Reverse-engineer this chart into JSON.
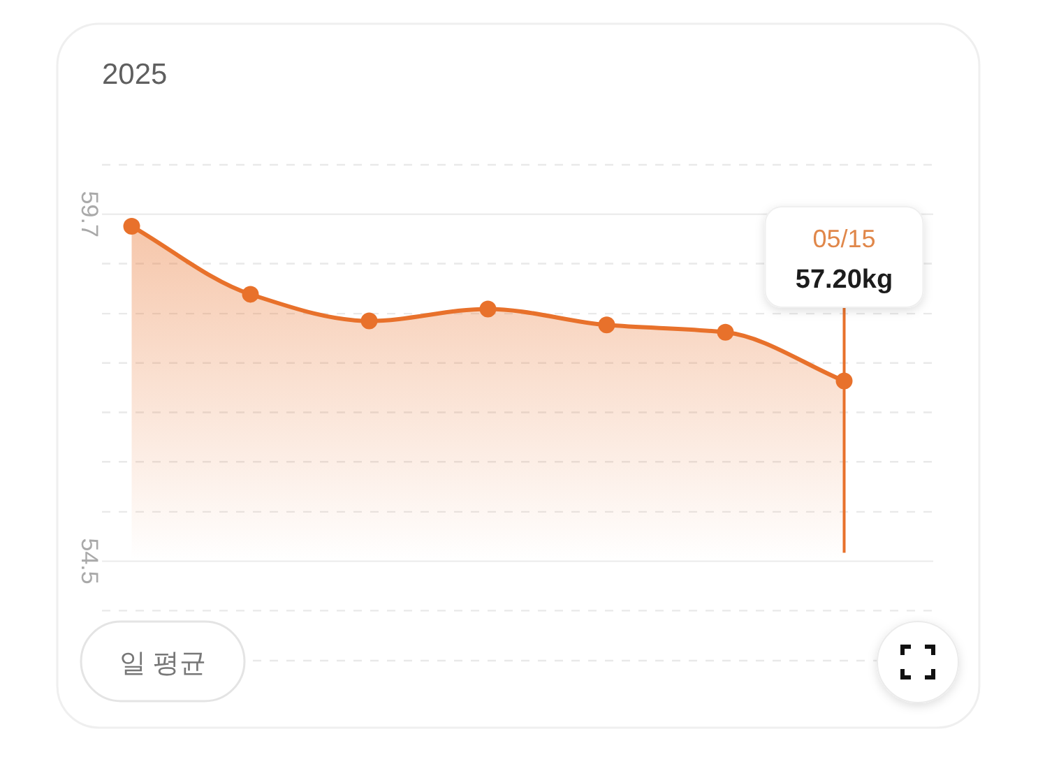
{
  "chart_data": {
    "type": "area",
    "title": "2025",
    "categories": [
      null,
      null,
      null,
      null,
      null,
      null,
      "05/15"
    ],
    "series": [
      {
        "color": "#e8712b",
        "values": [
          59.52,
          58.5,
          58.1,
          58.28,
          58.04,
          57.93,
          57.2
        ]
      }
    ],
    "ylim": [
      53.01,
      60.44
    ],
    "yticks": [
      {
        "value": 60.44,
        "label": null
      },
      59.7,
      {
        "value": 58.96,
        "label": null
      },
      {
        "value": 58.21,
        "label": null
      },
      {
        "value": 57.47,
        "label": null
      },
      {
        "value": 56.73,
        "label": null
      },
      {
        "value": 55.99,
        "label": null
      },
      {
        "value": 55.24,
        "label": null
      },
      54.5,
      {
        "value": 53.76,
        "label": null
      },
      {
        "value": 53.01,
        "label": null
      }
    ],
    "grid": "y",
    "tick_labels": "y",
    "marker": "circle",
    "line_style": "solid",
    "ref_lines": [
      {
        "axis": "x",
        "value": "05/15",
        "color": "#e8712b"
      }
    ],
    "annotations": [
      "57.20kg",
      "일 평균"
    ]
  }
}
